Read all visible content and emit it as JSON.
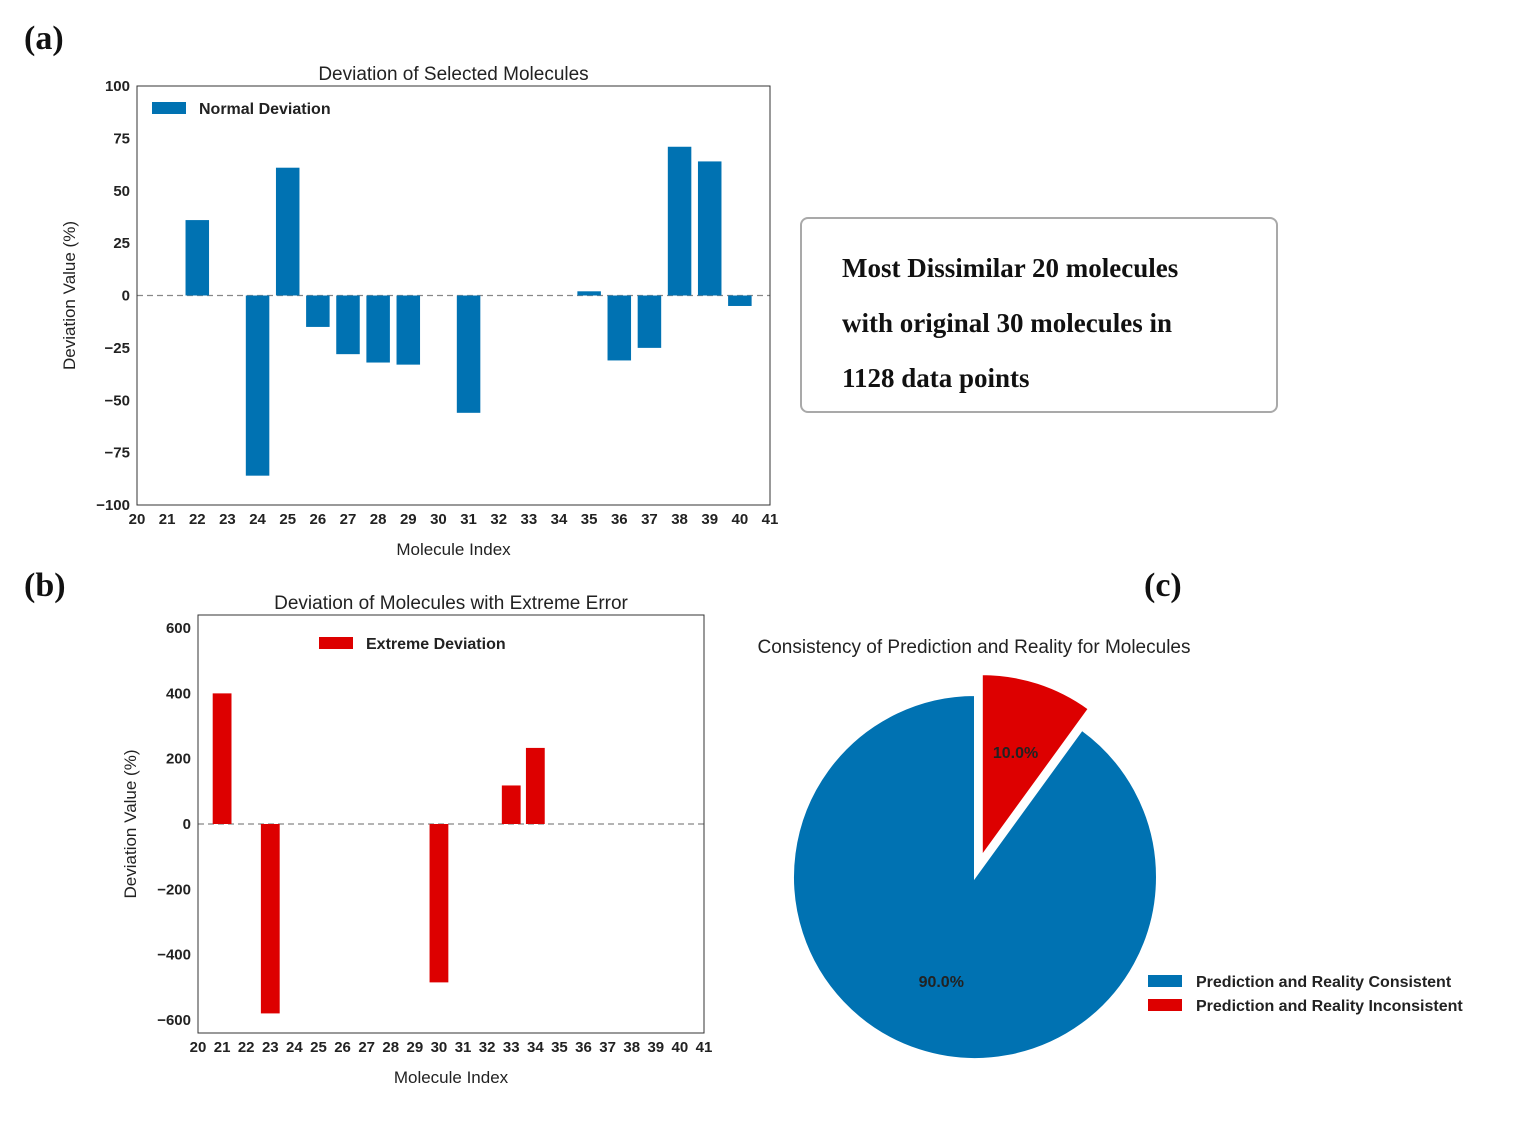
{
  "panel_labels": {
    "a": "(a)",
    "b": "(b)",
    "c": "(c)"
  },
  "info_box": {
    "lines": [
      "Most Dissimilar 20 molecules",
      "with original 30 molecules in",
      "1128 data points"
    ]
  },
  "chart_data": [
    {
      "type": "bar",
      "title": "Deviation of Selected Molecules",
      "xlabel": "Molecule Index",
      "ylabel": "Deviation Value (%)",
      "legend": "Normal Deviation",
      "legend_position": "top-left",
      "color": "#0072b2",
      "xlim": [
        20,
        41
      ],
      "ylim": [
        -100,
        100
      ],
      "yticks": [
        100,
        75,
        50,
        25,
        0,
        -25,
        -50,
        -75,
        -100
      ],
      "ytick_labels": [
        "100",
        "75",
        "50",
        "25",
        "0",
        "−25",
        "−50",
        "−75",
        "−100"
      ],
      "x": [
        22,
        24,
        25,
        26,
        27,
        28,
        29,
        31,
        35,
        36,
        37,
        38,
        39,
        40
      ],
      "values": [
        36,
        -86,
        61,
        -15,
        -28,
        -32,
        -33,
        -56,
        2,
        -31,
        -25,
        71,
        64,
        -5
      ],
      "zero_line": "dashed",
      "grid": false
    },
    {
      "type": "bar",
      "title": "Deviation of Molecules with Extreme Error",
      "xlabel": "Molecule Index",
      "ylabel": "Deviation Value (%)",
      "legend": "Extreme Deviation",
      "legend_position": "top-center",
      "color": "#dd0000",
      "xlim": [
        20,
        41
      ],
      "ylim": [
        -640,
        640
      ],
      "yticks": [
        600,
        400,
        200,
        0,
        -200,
        -400,
        -600
      ],
      "ytick_labels": [
        "600",
        "400",
        "200",
        "0",
        "−200",
        "−400",
        "−600"
      ],
      "x": [
        21,
        23,
        30,
        33,
        34
      ],
      "values": [
        400,
        -580,
        -485,
        118,
        233
      ],
      "zero_line": "dashed",
      "grid": false
    },
    {
      "type": "pie",
      "title": "Consistency of Prediction and Reality for Molecules",
      "slices": [
        {
          "label": "Prediction and Reality Consistent",
          "value": 90.0,
          "display": "90.0%",
          "color": "#0072b2"
        },
        {
          "label": "Prediction and Reality Inconsistent",
          "value": 10.0,
          "display": "10.0%",
          "color": "#dd0000",
          "exploded": true
        }
      ],
      "legend_position": "lower-right"
    }
  ]
}
